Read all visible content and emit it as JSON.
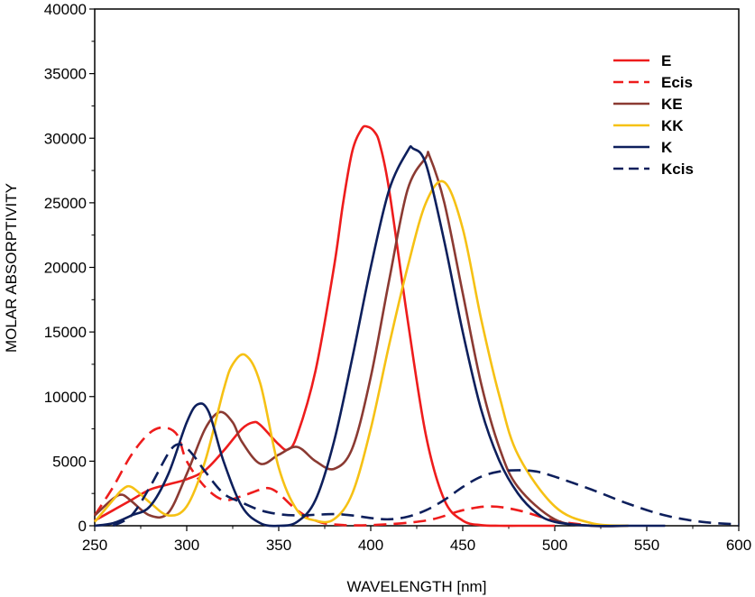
{
  "chart_data": {
    "type": "line",
    "xlabel": "WAVELENGTH [nm]",
    "ylabel": "MOLAR ABSORPTIVITY",
    "xlim": [
      250,
      600
    ],
    "ylim": [
      0,
      40000
    ],
    "x_ticks": [
      250,
      300,
      350,
      400,
      450,
      500,
      550,
      600
    ],
    "y_ticks": [
      0,
      5000,
      10000,
      15000,
      20000,
      25000,
      30000,
      35000,
      40000
    ],
    "x_tick_labels": [
      "250",
      "300",
      "350",
      "400",
      "450",
      "500",
      "550",
      "600"
    ],
    "y_tick_labels": [
      "0",
      "5000",
      "10000",
      "15000",
      "20000",
      "25000",
      "30000",
      "35000",
      "40000"
    ],
    "legend_position": "top-right",
    "series": [
      {
        "name": "E",
        "color": "#ee1c1c",
        "dash": "solid",
        "x": [
          250,
          260,
          270,
          280,
          290,
          300,
          310,
          320,
          330,
          336,
          340,
          350,
          355,
          360,
          370,
          380,
          385,
          390,
          395,
          398,
          402,
          405,
          410,
          420,
          430,
          440,
          450,
          460,
          470,
          480,
          500
        ],
        "y": [
          400,
          1200,
          2000,
          2800,
          3200,
          3600,
          4300,
          5800,
          7500,
          8000,
          7800,
          6300,
          5900,
          7000,
          12000,
          20000,
          25000,
          29000,
          30700,
          30900,
          30500,
          29500,
          26000,
          16000,
          7000,
          2000,
          400,
          50,
          0,
          0,
          0
        ]
      },
      {
        "name": "Ecis",
        "color": "#ee1c1c",
        "dash": "dashed",
        "x": [
          250,
          260,
          270,
          280,
          288,
          295,
          300,
          310,
          320,
          330,
          340,
          345,
          350,
          360,
          370,
          380,
          400,
          430,
          450,
          465,
          480,
          500,
          520
        ],
        "y": [
          800,
          3000,
          5500,
          7200,
          7600,
          7000,
          5000,
          3000,
          2000,
          2300,
          2800,
          2900,
          2500,
          1200,
          400,
          100,
          50,
          400,
          1200,
          1500,
          1200,
          400,
          0
        ]
      },
      {
        "name": "KE",
        "color": "#8b3a32",
        "dash": "solid",
        "x": [
          250,
          260,
          265,
          270,
          280,
          290,
          300,
          310,
          318,
          325,
          330,
          340,
          350,
          360,
          370,
          380,
          390,
          400,
          410,
          420,
          430,
          432,
          440,
          450,
          460,
          470,
          480,
          500,
          520,
          540
        ],
        "y": [
          800,
          2100,
          2400,
          1900,
          800,
          1000,
          4000,
          7500,
          8800,
          8000,
          6500,
          4800,
          5500,
          6100,
          5000,
          4400,
          6000,
          11500,
          19000,
          26000,
          28500,
          28600,
          25000,
          18000,
          11000,
          6000,
          3000,
          500,
          0,
          0
        ]
      },
      {
        "name": "KK",
        "color": "#f6c114",
        "dash": "solid",
        "x": [
          250,
          260,
          265,
          270,
          280,
          290,
          300,
          310,
          320,
          325,
          332,
          340,
          350,
          360,
          370,
          380,
          390,
          400,
          410,
          420,
          430,
          440,
          450,
          460,
          470,
          480,
          500,
          520,
          540
        ],
        "y": [
          300,
          2000,
          2800,
          3000,
          1800,
          800,
          1500,
          5000,
          10500,
          12500,
          13200,
          11000,
          4500,
          1200,
          400,
          500,
          2500,
          7500,
          14000,
          20000,
          25000,
          26600,
          23000,
          16000,
          10000,
          5500,
          1500,
          200,
          0
        ]
      },
      {
        "name": "K",
        "color": "#0d1f5c",
        "dash": "solid",
        "x": [
          250,
          260,
          270,
          280,
          290,
          300,
          306,
          312,
          320,
          330,
          340,
          350,
          360,
          370,
          380,
          390,
          400,
          410,
          420,
          423,
          430,
          440,
          450,
          460,
          470,
          480,
          490,
          500,
          520,
          540,
          560
        ],
        "y": [
          0,
          200,
          800,
          1500,
          4000,
          8000,
          9400,
          8800,
          5000,
          1500,
          200,
          0,
          300,
          2000,
          6500,
          13000,
          20000,
          26000,
          29000,
          29200,
          28000,
          22000,
          15000,
          9000,
          5000,
          2500,
          1000,
          300,
          0,
          0,
          0
        ]
      },
      {
        "name": "Kcis",
        "color": "#0d1f5c",
        "dash": "dashed",
        "x": [
          260,
          270,
          280,
          290,
          295,
          300,
          305,
          310,
          320,
          330,
          340,
          350,
          360,
          370,
          380,
          390,
          400,
          410,
          420,
          430,
          440,
          450,
          460,
          470,
          480,
          490,
          500,
          520,
          540,
          560,
          580,
          600
        ],
        "y": [
          0,
          800,
          3000,
          5600,
          6300,
          6000,
          5200,
          4200,
          2500,
          1800,
          1200,
          900,
          800,
          850,
          900,
          800,
          600,
          500,
          700,
          1200,
          2000,
          3000,
          3800,
          4200,
          4300,
          4200,
          3800,
          2800,
          1700,
          800,
          300,
          100
        ]
      }
    ]
  }
}
